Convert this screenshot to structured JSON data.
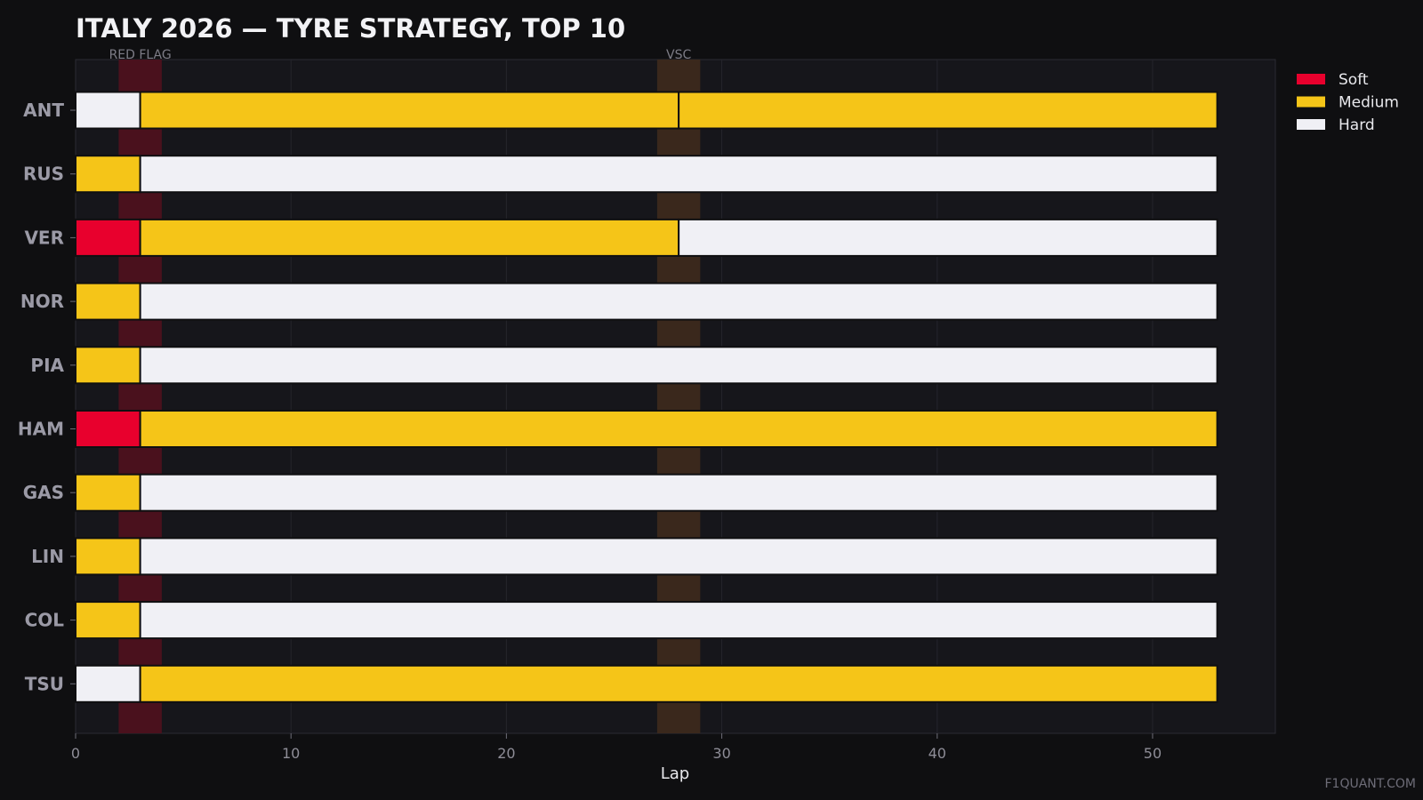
{
  "chart_data": {
    "type": "bar",
    "orientation": "horizontal-stacked",
    "title": "ITALY 2026 — TYRE STRATEGY, TOP 10",
    "xlabel": "Lap",
    "ylabel": "",
    "xlim": [
      0,
      55.7
    ],
    "xticks": [
      0,
      10,
      20,
      30,
      40,
      50
    ],
    "compounds": [
      {
        "name": "Soft",
        "color": "#e8002d"
      },
      {
        "name": "Medium",
        "color": "#f5c518"
      },
      {
        "name": "Hard",
        "color": "#f0f0f5"
      }
    ],
    "events": [
      {
        "label": "RED FLAG",
        "start": 2,
        "end": 4,
        "color": "#4a111d"
      },
      {
        "label": "VSC",
        "start": 27,
        "end": 29,
        "color": "#3a281c"
      }
    ],
    "drivers": [
      {
        "code": "ANT",
        "stints": [
          {
            "compound": "Hard",
            "start": 0,
            "end": 3
          },
          {
            "compound": "Medium",
            "start": 3,
            "end": 28
          },
          {
            "compound": "Medium",
            "start": 28,
            "end": 53
          }
        ]
      },
      {
        "code": "RUS",
        "stints": [
          {
            "compound": "Medium",
            "start": 0,
            "end": 3
          },
          {
            "compound": "Hard",
            "start": 3,
            "end": 53
          }
        ]
      },
      {
        "code": "VER",
        "stints": [
          {
            "compound": "Soft",
            "start": 0,
            "end": 3
          },
          {
            "compound": "Medium",
            "start": 3,
            "end": 28
          },
          {
            "compound": "Hard",
            "start": 28,
            "end": 53
          }
        ]
      },
      {
        "code": "NOR",
        "stints": [
          {
            "compound": "Medium",
            "start": 0,
            "end": 3
          },
          {
            "compound": "Hard",
            "start": 3,
            "end": 53
          }
        ]
      },
      {
        "code": "PIA",
        "stints": [
          {
            "compound": "Medium",
            "start": 0,
            "end": 3
          },
          {
            "compound": "Hard",
            "start": 3,
            "end": 53
          }
        ]
      },
      {
        "code": "HAM",
        "stints": [
          {
            "compound": "Soft",
            "start": 0,
            "end": 3
          },
          {
            "compound": "Medium",
            "start": 3,
            "end": 53
          }
        ]
      },
      {
        "code": "GAS",
        "stints": [
          {
            "compound": "Medium",
            "start": 0,
            "end": 3
          },
          {
            "compound": "Hard",
            "start": 3,
            "end": 53
          }
        ]
      },
      {
        "code": "LIN",
        "stints": [
          {
            "compound": "Medium",
            "start": 0,
            "end": 3
          },
          {
            "compound": "Hard",
            "start": 3,
            "end": 53
          }
        ]
      },
      {
        "code": "COL",
        "stints": [
          {
            "compound": "Medium",
            "start": 0,
            "end": 3
          },
          {
            "compound": "Hard",
            "start": 3,
            "end": 53
          }
        ]
      },
      {
        "code": "TSU",
        "stints": [
          {
            "compound": "Hard",
            "start": 0,
            "end": 3
          },
          {
            "compound": "Medium",
            "start": 3,
            "end": 53
          }
        ]
      }
    ],
    "legend": "top-right",
    "grid": true
  },
  "watermark": "F1QUANT.COM"
}
